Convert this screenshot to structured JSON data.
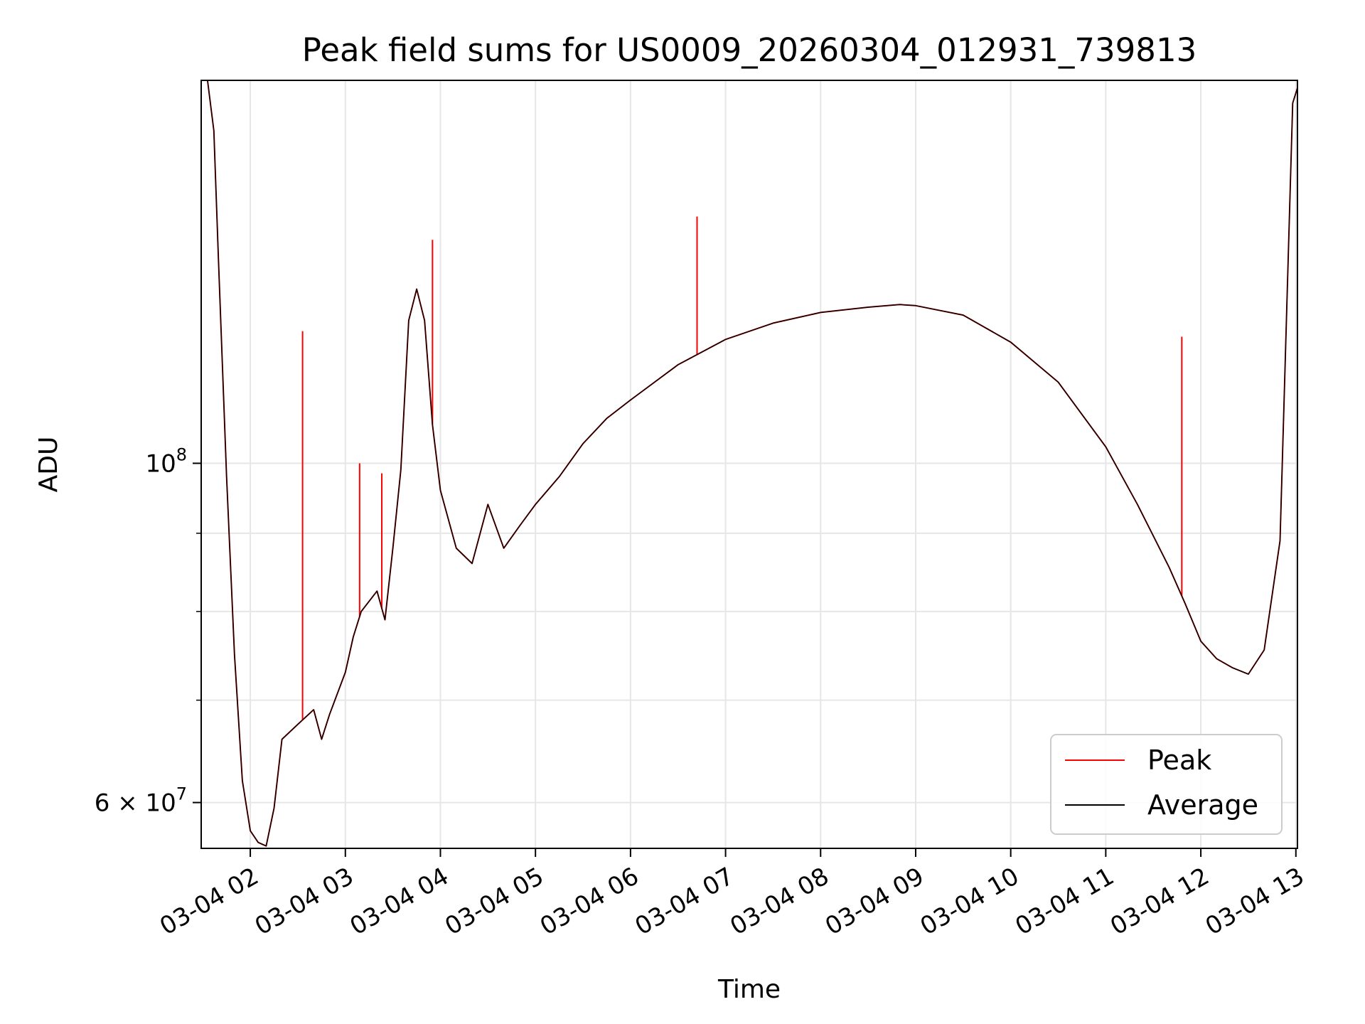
{
  "chart_data": {
    "type": "line",
    "title": "Peak field sums for US0009_20260304_012931_739813",
    "xlabel": "Time",
    "ylabel": "ADU",
    "yscale": "log",
    "xlim": [
      "2026-03-04 01:29",
      "2026-03-04 13:01"
    ],
    "ylim": [
      56000000,
      178000000
    ],
    "grid": true,
    "legend_position": "lower-right",
    "x_tick_labels": [
      "03-04 02",
      "03-04 03",
      "03-04 04",
      "03-04 05",
      "03-04 06",
      "03-04 07",
      "03-04 08",
      "03-04 09",
      "03-04 10",
      "03-04 11",
      "03-04 12",
      "03-04 13"
    ],
    "y_tick_labels": [
      {
        "value": 100000000,
        "base": "10",
        "exp": "8"
      },
      {
        "value": 60000000,
        "base": "6 × 10",
        "exp": "7"
      }
    ],
    "y_minor_ticks": [
      70000000,
      80000000,
      90000000
    ],
    "x": [
      "01:29",
      "01:33",
      "01:37",
      "01:40",
      "01:45",
      "01:50",
      "01:55",
      "02:00",
      "02:05",
      "02:10",
      "02:15",
      "02:20",
      "02:30",
      "02:40",
      "02:45",
      "02:50",
      "03:00",
      "03:05",
      "03:10",
      "03:20",
      "03:25",
      "03:30",
      "03:35",
      "03:40",
      "03:45",
      "03:50",
      "03:55",
      "04:00",
      "04:10",
      "04:20",
      "04:30",
      "04:40",
      "04:50",
      "05:00",
      "05:15",
      "05:30",
      "05:45",
      "06:00",
      "06:30",
      "07:00",
      "07:30",
      "08:00",
      "08:30",
      "08:50",
      "09:00",
      "09:30",
      "10:00",
      "10:30",
      "11:00",
      "11:20",
      "11:40",
      "11:50",
      "12:00",
      "12:10",
      "12:20",
      "12:30",
      "12:40",
      "12:50",
      "12:58",
      "13:01"
    ],
    "series": [
      {
        "name": "Peak",
        "color": "#ff0000",
        "values": [
          178000000,
          178000000,
          165000000,
          135000000,
          98000000,
          75000000,
          62000000,
          57500000,
          56500000,
          56200000,
          59500000,
          66000000,
          67500000,
          69000000,
          66000000,
          68500000,
          73000000,
          77000000,
          80000000,
          82500000,
          79000000,
          88000000,
          99000000,
          124000000,
          130000000,
          124000000,
          106000000,
          96000000,
          88000000,
          86000000,
          94000000,
          88000000,
          91000000,
          94000000,
          98000000,
          103000000,
          107000000,
          110000000,
          116000000,
          120500000,
          123500000,
          125500000,
          126500000,
          127000000,
          126800000,
          125000000,
          120000000,
          113000000,
          102500000,
          94000000,
          85500000,
          81000000,
          76500000,
          74500000,
          73500000,
          72800000,
          75500000,
          89000000,
          172000000,
          176000000
        ]
      },
      {
        "name": "Average",
        "color": "#000000",
        "values": [
          178000000,
          178000000,
          165000000,
          135000000,
          98000000,
          75000000,
          62000000,
          57500000,
          56500000,
          56200000,
          59500000,
          66000000,
          67500000,
          69000000,
          66000000,
          68500000,
          73000000,
          77000000,
          80000000,
          82500000,
          79000000,
          88000000,
          99000000,
          124000000,
          130000000,
          124000000,
          106000000,
          96000000,
          88000000,
          86000000,
          94000000,
          88000000,
          91000000,
          94000000,
          98000000,
          103000000,
          107000000,
          110000000,
          116000000,
          120500000,
          123500000,
          125500000,
          126500000,
          127000000,
          126800000,
          125000000,
          120000000,
          113000000,
          102500000,
          94000000,
          85500000,
          81000000,
          76500000,
          74500000,
          73500000,
          72800000,
          75500000,
          89000000,
          172000000,
          176000000
        ]
      }
    ],
    "peak_spikes": [
      {
        "x": "02:33",
        "value": 122000000
      },
      {
        "x": "03:09",
        "value": 100000000
      },
      {
        "x": "03:23",
        "value": 98500000
      },
      {
        "x": "03:55",
        "value": 140000000
      },
      {
        "x": "06:42",
        "value": 145000000
      },
      {
        "x": "11:48",
        "value": 121000000
      }
    ]
  }
}
